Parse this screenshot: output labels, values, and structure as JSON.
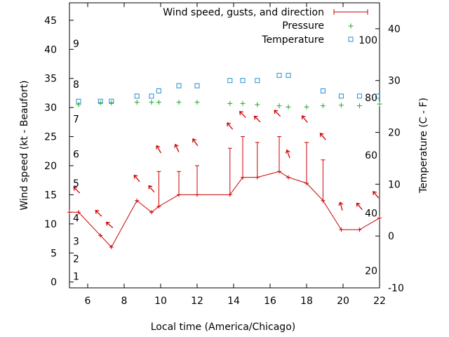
{
  "chart_data": {
    "type": "line",
    "xlabel": "Local time (America/Chicago)",
    "ylabel_left": "Wind speed (kt - Beaufort)",
    "ylabel_right": "Temperature (C - F)",
    "x_range": [
      5,
      22
    ],
    "x_ticks": [
      6,
      8,
      10,
      12,
      14,
      16,
      18,
      20,
      22
    ],
    "y_left_range": [
      -1,
      48
    ],
    "y_left_ticks": [
      0,
      5,
      10,
      15,
      20,
      25,
      30,
      35,
      40,
      45
    ],
    "y_right_range": [
      -10,
      45
    ],
    "y_right_ticks": [
      -10,
      0,
      10,
      20,
      30,
      40
    ],
    "beaufort_labels": [
      {
        "label": "1",
        "at": 1
      },
      {
        "label": "2",
        "at": 4
      },
      {
        "label": "3",
        "at": 7
      },
      {
        "label": "4",
        "at": 11
      },
      {
        "label": "5",
        "at": 17
      },
      {
        "label": "6",
        "at": 22
      },
      {
        "label": "7",
        "at": 28
      },
      {
        "label": "8",
        "at": 34
      },
      {
        "label": "9",
        "at": 41
      }
    ],
    "fahrenheit_labels": [
      {
        "label": "20",
        "at": -6.7
      },
      {
        "label": "40",
        "at": 4.4
      },
      {
        "label": "60",
        "at": 15.6
      },
      {
        "label": "80",
        "at": 26.7
      },
      {
        "label": "100",
        "at": 37.8
      }
    ],
    "legend": {
      "placement": "top-right",
      "wind": "Wind speed, gusts, and direction",
      "pressure": "Pressure",
      "temperature": "Temperature"
    },
    "colors": {
      "wind": "#cc0000",
      "pressure": "#22aa22",
      "temperature": "#1f8fd6"
    },
    "wind": {
      "x": [
        5,
        5.5,
        6.7,
        7.3,
        8.7,
        9.5,
        9.9,
        11,
        12,
        13.8,
        14.5,
        15.3,
        16.5,
        17,
        18,
        18.9,
        19.9,
        20.9,
        22
      ],
      "speed": [
        12,
        12,
        8,
        6,
        14,
        12,
        13,
        15,
        15,
        15,
        18,
        18,
        19,
        18,
        17,
        14,
        9,
        9,
        11
      ],
      "gust": [
        null,
        null,
        null,
        null,
        null,
        null,
        19,
        19,
        20,
        23,
        25,
        24,
        25,
        null,
        24,
        21,
        null,
        null,
        null
      ]
    },
    "wind_direction_arrows": [
      {
        "x": 5.4,
        "y": 15.8,
        "angle": -45
      },
      {
        "x": 6.6,
        "y": 11.8,
        "angle": -45
      },
      {
        "x": 7.2,
        "y": 9.8,
        "angle": -50
      },
      {
        "x": 8.7,
        "y": 17.8,
        "angle": -40
      },
      {
        "x": 9.5,
        "y": 16,
        "angle": -40
      },
      {
        "x": 9.9,
        "y": 22.8,
        "angle": -30
      },
      {
        "x": 10.9,
        "y": 23,
        "angle": -25
      },
      {
        "x": 11.9,
        "y": 24,
        "angle": -35
      },
      {
        "x": 13.8,
        "y": 26.8,
        "angle": -40
      },
      {
        "x": 14.5,
        "y": 28.8,
        "angle": -45
      },
      {
        "x": 15.3,
        "y": 28,
        "angle": -45
      },
      {
        "x": 16.4,
        "y": 29,
        "angle": -45
      },
      {
        "x": 17,
        "y": 22,
        "angle": -20
      },
      {
        "x": 17.9,
        "y": 28,
        "angle": -40
      },
      {
        "x": 18.9,
        "y": 25,
        "angle": -40
      },
      {
        "x": 19.9,
        "y": 13,
        "angle": -15
      },
      {
        "x": 20.9,
        "y": 13,
        "angle": -40
      },
      {
        "x": 21.8,
        "y": 15,
        "angle": -40
      }
    ],
    "pressure": {
      "x": [
        5.5,
        6.7,
        7.3,
        8.7,
        9.5,
        9.9,
        11,
        12,
        13.8,
        14.5,
        15.3,
        16.5,
        17,
        18,
        18.9,
        19.9,
        20.9,
        22
      ],
      "y": [
        30.5,
        30.8,
        30.8,
        30.9,
        30.9,
        30.9,
        30.9,
        30.9,
        30.7,
        30.7,
        30.5,
        30.3,
        30.1,
        30.1,
        30.3,
        30.4,
        30.3,
        30.6
      ]
    },
    "temperature": {
      "x": [
        5.5,
        6.7,
        7.3,
        8.7,
        9.5,
        9.9,
        11,
        12,
        13.8,
        14.5,
        15.3,
        16.5,
        17,
        18.9,
        19.9,
        20.9,
        21.9
      ],
      "y": [
        26,
        26,
        26,
        27,
        27,
        28,
        29,
        29,
        30,
        30,
        30,
        31,
        31,
        28,
        27,
        27,
        27
      ]
    }
  }
}
